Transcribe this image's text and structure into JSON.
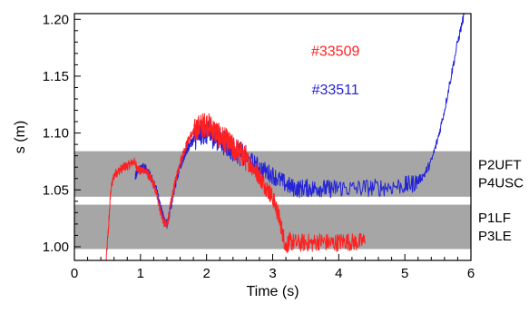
{
  "chart_data": {
    "type": "line",
    "xlabel": "Time (s)",
    "ylabel": "s (m)",
    "xlim": [
      0,
      6
    ],
    "ylim": [
      0.988,
      1.205
    ],
    "x_ticks": [
      "0",
      "1",
      "2",
      "3",
      "4",
      "5",
      "6"
    ],
    "y_ticks": [
      "1.00",
      "1.05",
      "1.10",
      "1.15",
      "1.20"
    ],
    "grid": false,
    "colors": {
      "band": "#a6a6a6",
      "red": "#ff2020",
      "blue": "#2323d8"
    },
    "bands": [
      {
        "y_range": [
          1.044,
          1.084
        ],
        "label_lines": [
          "P2UFT",
          "P4USC"
        ]
      },
      {
        "y_range": [
          0.998,
          1.037
        ],
        "label_lines": [
          "P1LF",
          "P3LE"
        ]
      }
    ],
    "series": [
      {
        "name": "#33509",
        "color": "#ff2020",
        "x": [
          0.48,
          0.52,
          0.55,
          0.6,
          0.65,
          0.7,
          0.75,
          0.8,
          0.85,
          0.9,
          0.95,
          1.0,
          1.05,
          1.1,
          1.15,
          1.2,
          1.25,
          1.3,
          1.35,
          1.4,
          1.45,
          1.5,
          1.55,
          1.6,
          1.65,
          1.7,
          1.75,
          1.8,
          1.85,
          1.9,
          1.95,
          2.0,
          2.05,
          2.1,
          2.15,
          2.2,
          2.25,
          2.3,
          2.35,
          2.4,
          2.45,
          2.5,
          2.55,
          2.6,
          2.65,
          2.7,
          2.75,
          2.8,
          2.85,
          2.9,
          2.95,
          3.0,
          3.05,
          3.1,
          3.15,
          3.2,
          3.25,
          3.3,
          3.4,
          3.5,
          3.6,
          3.7,
          3.8,
          3.9,
          4.0,
          4.1,
          4.2,
          4.3,
          4.4
        ],
        "y": [
          0.988,
          1.02,
          1.05,
          1.063,
          1.066,
          1.068,
          1.07,
          1.071,
          1.073,
          1.075,
          1.07,
          1.066,
          1.068,
          1.065,
          1.06,
          1.055,
          1.045,
          1.032,
          1.022,
          1.018,
          1.035,
          1.05,
          1.063,
          1.074,
          1.083,
          1.09,
          1.097,
          1.1,
          1.104,
          1.106,
          1.107,
          1.108,
          1.106,
          1.103,
          1.1,
          1.097,
          1.095,
          1.093,
          1.09,
          1.087,
          1.085,
          1.083,
          1.08,
          1.077,
          1.073,
          1.07,
          1.066,
          1.062,
          1.057,
          1.052,
          1.048,
          1.043,
          1.035,
          1.025,
          1.012,
          1.0,
          1.005,
          1.004,
          1.003,
          1.004,
          1.003,
          1.005,
          1.004,
          1.003,
          1.004,
          1.005,
          1.004,
          1.004,
          1.005
        ],
        "label_pos": [
          3.95,
          1.168
        ]
      },
      {
        "name": "#33511",
        "color": "#2323d8",
        "x": [
          0.92,
          0.95,
          1.0,
          1.05,
          1.1,
          1.15,
          1.2,
          1.25,
          1.3,
          1.35,
          1.4,
          1.45,
          1.5,
          1.55,
          1.6,
          1.65,
          1.7,
          1.75,
          1.8,
          1.85,
          1.9,
          1.95,
          2.0,
          2.05,
          2.1,
          2.15,
          2.2,
          2.25,
          2.3,
          2.35,
          2.4,
          2.5,
          2.6,
          2.7,
          2.8,
          2.9,
          3.0,
          3.1,
          3.2,
          3.3,
          3.4,
          3.5,
          3.6,
          3.7,
          3.8,
          3.9,
          4.0,
          4.2,
          4.4,
          4.6,
          4.8,
          5.0,
          5.1,
          5.2,
          5.3,
          5.4,
          5.5,
          5.6,
          5.7,
          5.8,
          5.9
        ],
        "y": [
          1.062,
          1.066,
          1.068,
          1.07,
          1.067,
          1.062,
          1.056,
          1.048,
          1.036,
          1.025,
          1.02,
          1.032,
          1.048,
          1.06,
          1.07,
          1.078,
          1.085,
          1.09,
          1.094,
          1.097,
          1.1,
          1.101,
          1.1,
          1.099,
          1.097,
          1.096,
          1.094,
          1.092,
          1.09,
          1.088,
          1.086,
          1.082,
          1.078,
          1.074,
          1.07,
          1.066,
          1.063,
          1.059,
          1.055,
          1.052,
          1.051,
          1.052,
          1.051,
          1.052,
          1.051,
          1.051,
          1.052,
          1.051,
          1.052,
          1.052,
          1.053,
          1.054,
          1.055,
          1.058,
          1.064,
          1.075,
          1.095,
          1.12,
          1.15,
          1.18,
          1.205
        ],
        "label_pos": [
          3.95,
          1.134
        ]
      }
    ]
  }
}
